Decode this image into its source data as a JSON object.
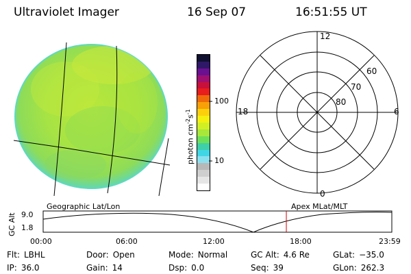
{
  "header": {
    "instrument": "Ultraviolet Imager",
    "date": "16 Sep 07",
    "time": "16:51:55 UT"
  },
  "colorbar": {
    "unit_label": "photon cm",
    "unit_sup1": "-2",
    "unit_mid": "s",
    "unit_sup2": "-1",
    "ticks": [
      "100",
      "10"
    ],
    "colors": [
      "#ffffff",
      "#e6e6e6",
      "#cfcfcf",
      "#b8b8b8",
      "#8be0f0",
      "#40d6e6",
      "#3ed0a8",
      "#6de05a",
      "#a7e83a",
      "#d2ef24",
      "#f4f00f",
      "#fcd10c",
      "#f8a008",
      "#ef6a0a",
      "#e81d1d",
      "#c8103b",
      "#a01070",
      "#6a1090",
      "#301868",
      "#101030"
    ]
  },
  "left_panel": {
    "title": "Geographic Lat/Lon",
    "image_colors": {
      "base": "#b5e63a",
      "mid": "#9fe24a",
      "dark": "#7fd86a",
      "bright": "#d2ec36"
    }
  },
  "right_panel": {
    "title": "Apex MLat/MLT",
    "mlt_labels": {
      "top": "12",
      "left": "18",
      "right": "6",
      "bottom": "0"
    },
    "lat_labels": [
      "60",
      "70",
      "80"
    ]
  },
  "orbit": {
    "axis_label": "GC Alt",
    "y_ticks": [
      "9.0",
      "1.8"
    ],
    "x_ticks": [
      "00:00",
      "06:00",
      "12:00",
      "18:00",
      "23:59"
    ],
    "current_marker_color": "#cc0000"
  },
  "status_rows": [
    [
      {
        "label": "Flt:",
        "value": "LBHL"
      },
      {
        "label": "Door:",
        "value": "Open"
      },
      {
        "label": "Mode:",
        "value": "Normal"
      },
      {
        "label": "GC Alt:",
        "value": "4.6 Re"
      },
      {
        "label": "GLat:",
        "value": "−35.0"
      }
    ],
    [
      {
        "label": "IP:",
        "value": "36.0"
      },
      {
        "label": "Gain:",
        "value": "14"
      },
      {
        "label": "Dsp:",
        "value": "0.0"
      },
      {
        "label": "Seq:",
        "value": "39"
      },
      {
        "label": "GLon:",
        "value": "262.3"
      }
    ]
  ]
}
